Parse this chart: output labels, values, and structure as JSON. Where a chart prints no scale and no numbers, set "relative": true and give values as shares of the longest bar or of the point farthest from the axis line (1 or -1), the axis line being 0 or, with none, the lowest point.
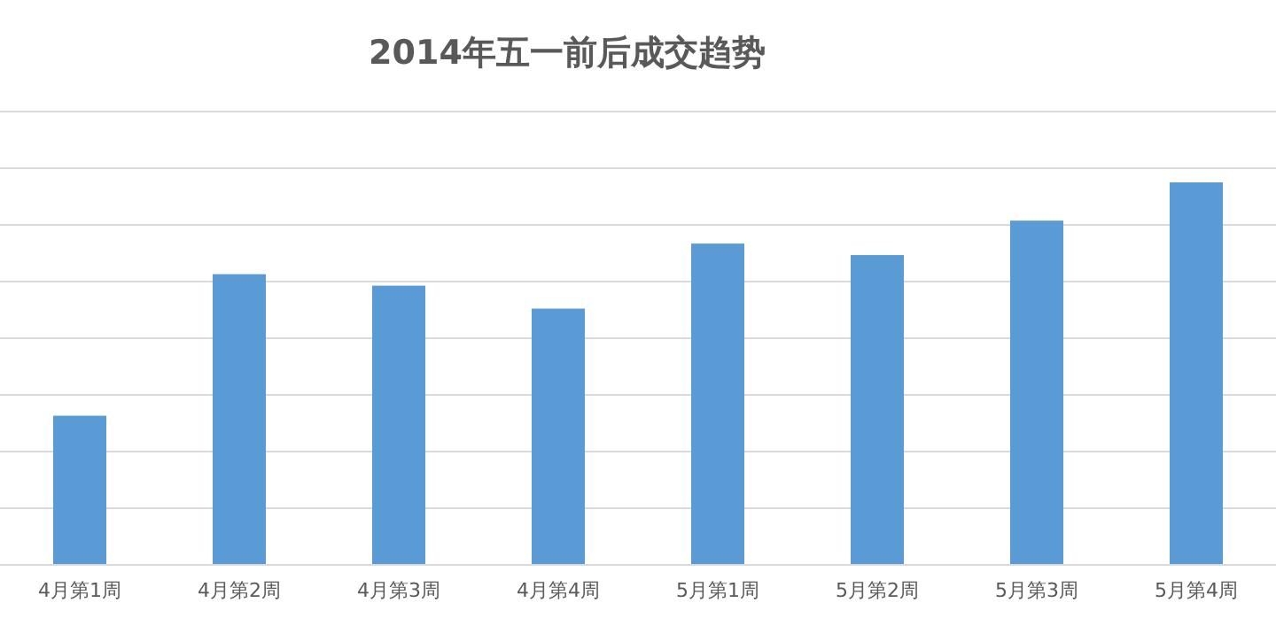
{
  "chart_data": {
    "type": "bar",
    "title": "2014年五一前后成交趋势",
    "relative": true,
    "grid": "y",
    "color": "#5b9bd5",
    "categories": [
      "4月第1周",
      "4月第2周",
      "4月第3周",
      "4月第4周",
      "5月第1周",
      "5月第2周",
      "5月第3周",
      "5月第4周"
    ],
    "values": [
      0.39,
      0.76,
      0.73,
      0.67,
      0.84,
      0.81,
      0.9,
      1
    ]
  }
}
